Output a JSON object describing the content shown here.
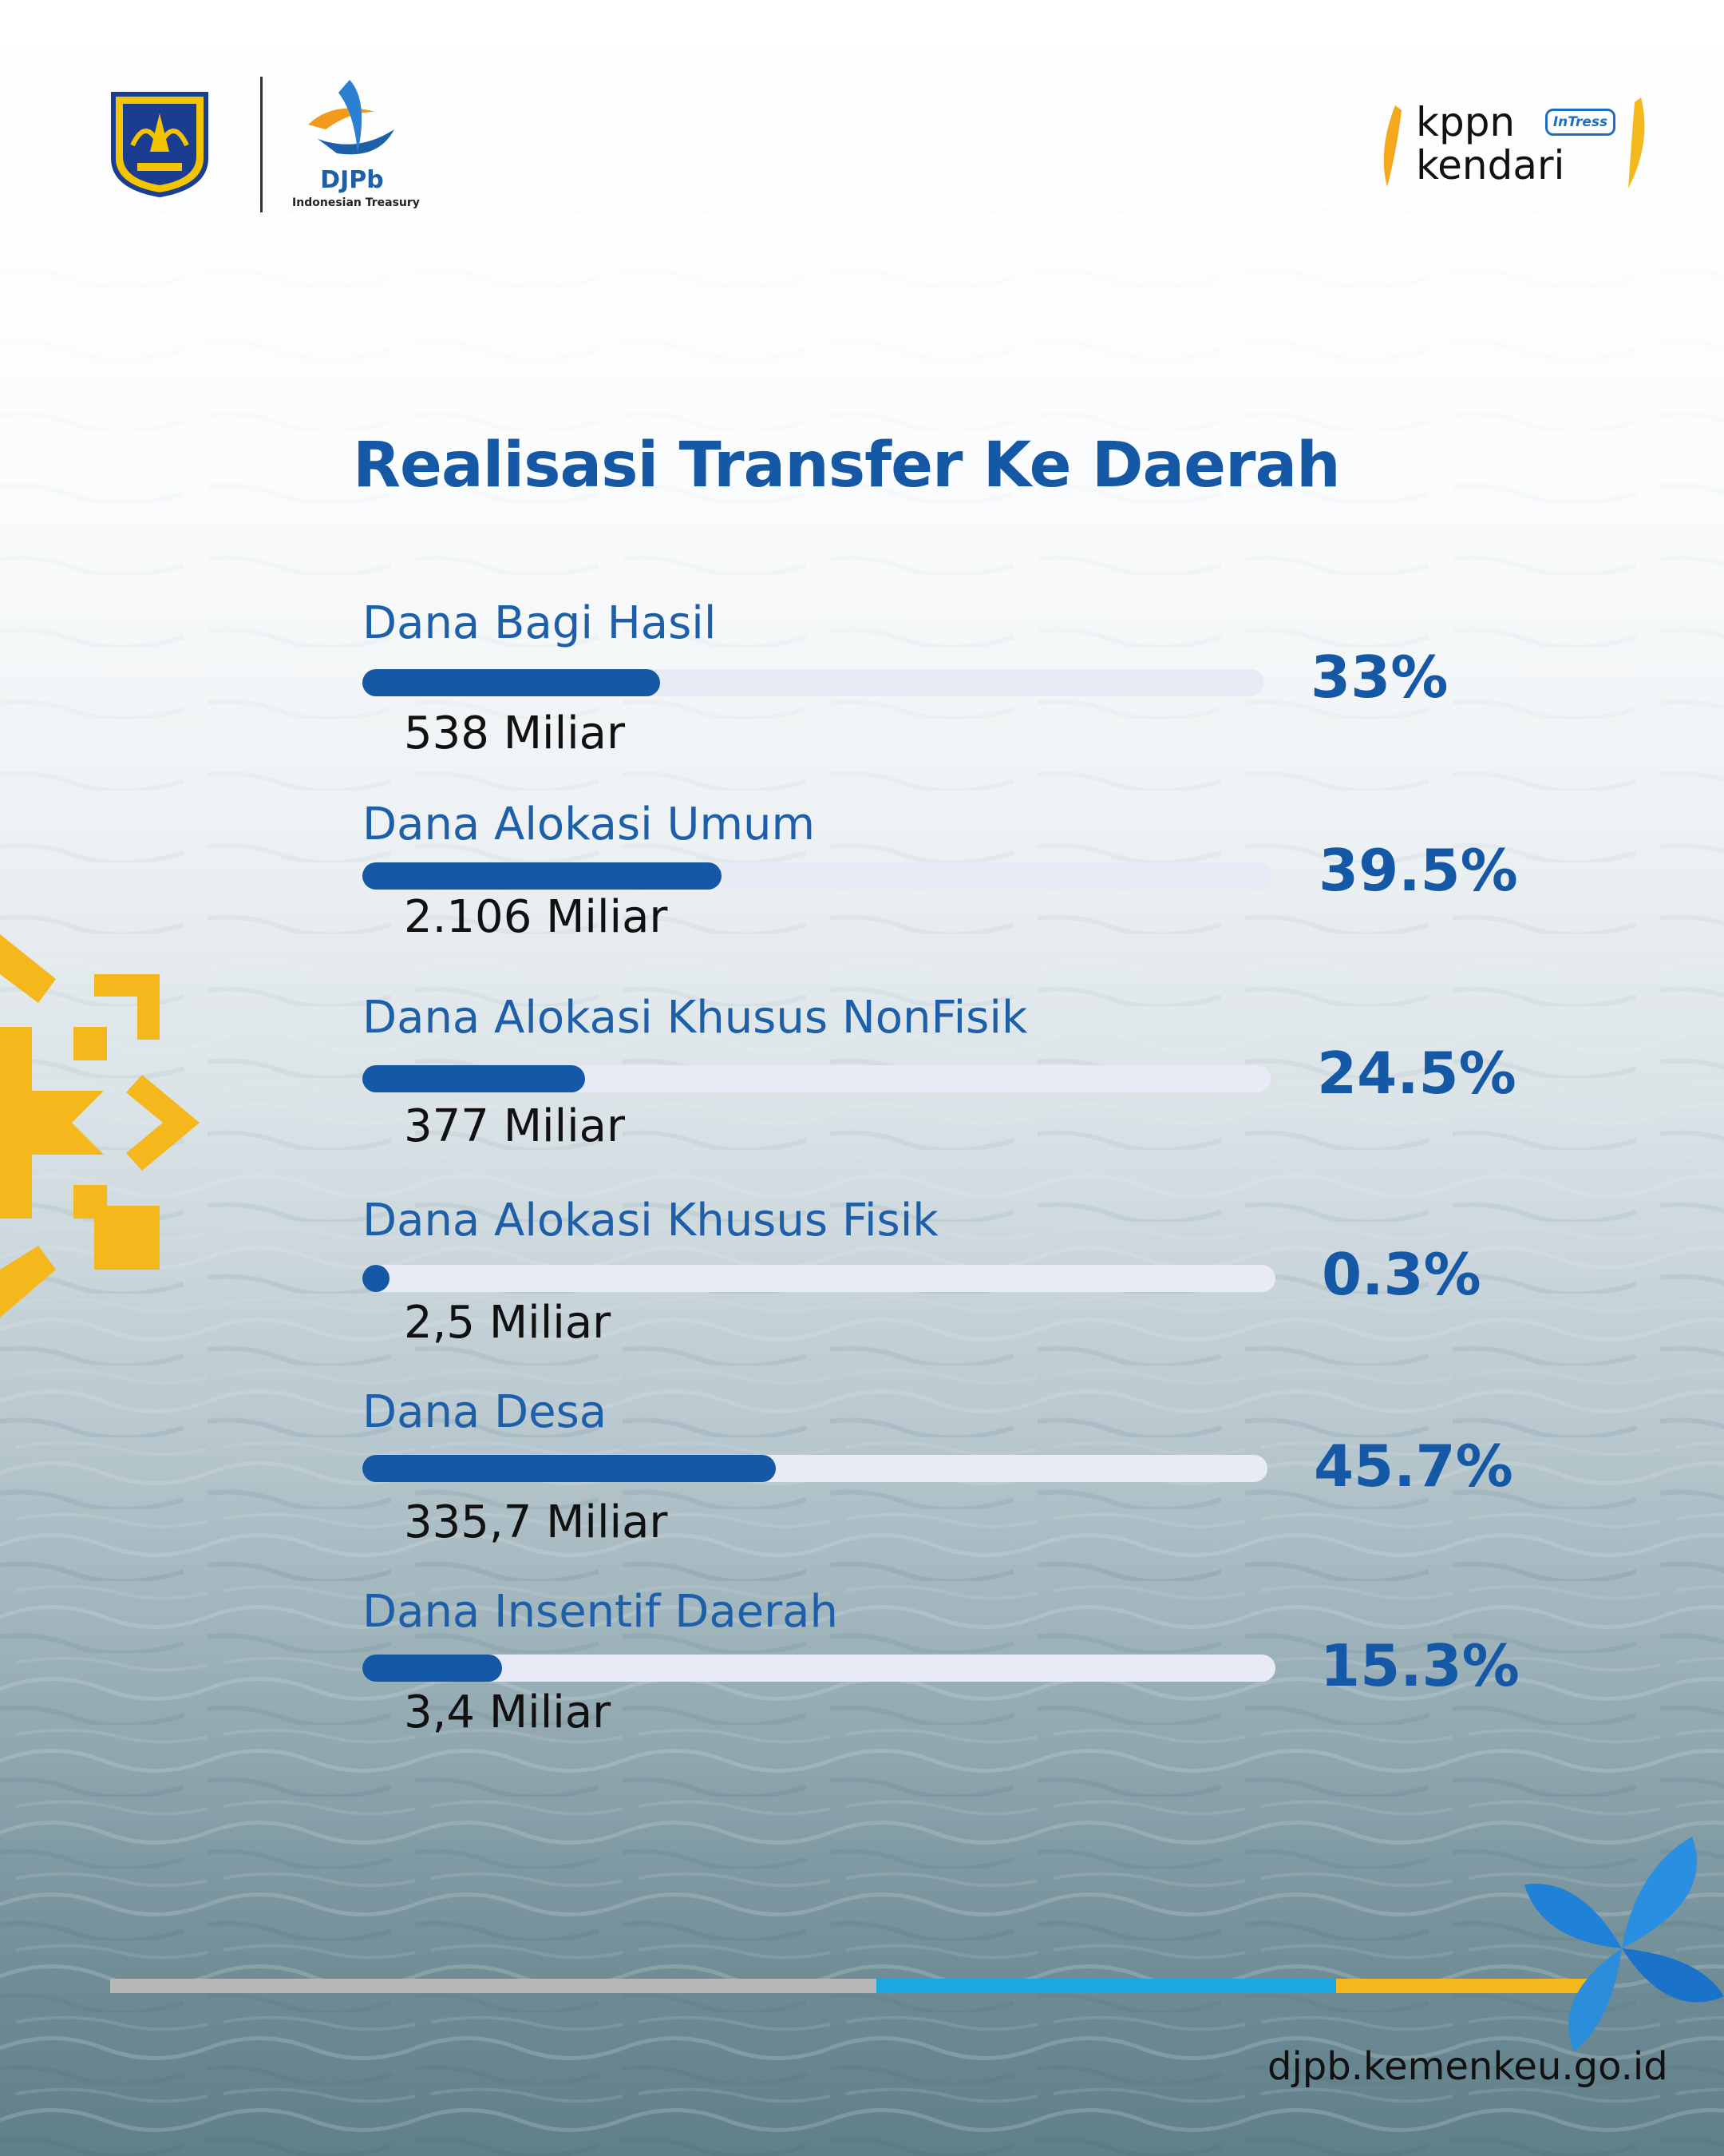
{
  "header": {
    "djpb_name": "DJPb",
    "djpb_tagline": "Indonesian Treasury",
    "kppn_line1": "kppn",
    "kppn_badge": "InTress",
    "kppn_line2": "kendari"
  },
  "colors": {
    "title": "#1559a6",
    "bar_fill": "#1559a6",
    "bar_track": "#e8eaf5",
    "accent_yellow": "#f5b81c",
    "accent_cyan": "#1aa7e2",
    "divider_gray": "#b7b7b7"
  },
  "chart_data": {
    "type": "bar",
    "orientation": "horizontal",
    "title": "Realisasi Transfer Ke Daerah",
    "xlim": [
      0,
      100
    ],
    "grid": false,
    "rows": [
      {
        "label": "Dana Bagi Hasil",
        "amount": "538 Miliar",
        "percent_label": "33%",
        "percent": 33
      },
      {
        "label": "Dana Alokasi Umum",
        "amount": "2.106 Miliar",
        "percent_label": "39.5%",
        "percent": 39.5
      },
      {
        "label": "Dana Alokasi Khusus  NonFisik",
        "amount": "377 Miliar",
        "percent_label": "24.5%",
        "percent": 24.5
      },
      {
        "label": "Dana Alokasi Khusus Fisik",
        "amount": "2,5 Miliar",
        "percent_label": "0.3%",
        "percent": 0.3
      },
      {
        "label": "Dana Desa",
        "amount": "335,7 Miliar",
        "percent_label": "45.7%",
        "percent": 45.7
      },
      {
        "label": "Dana Insentif Daerah",
        "amount": "3,4 Miliar",
        "percent_label": "15.3%",
        "percent": 15.3
      }
    ]
  },
  "footer": {
    "url": "djpb.kemenkeu.go.id"
  }
}
